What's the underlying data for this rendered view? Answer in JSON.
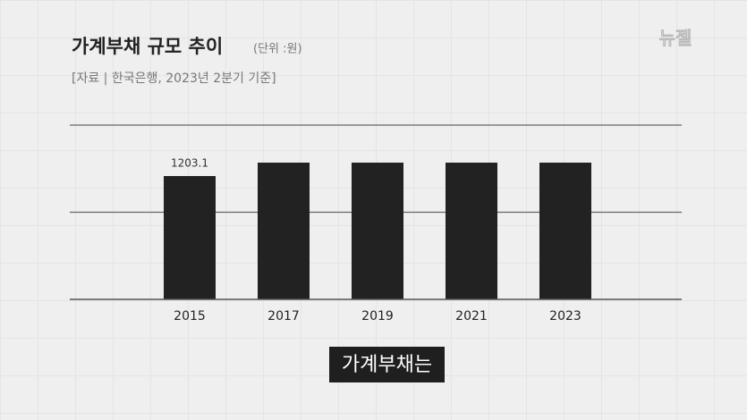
{
  "chart_data": {
    "type": "bar",
    "title": "가계부채 규모 추이",
    "subtitle": "(단위 :원)",
    "source": "[자료 | 한국은행, 2023년 2분기 기준]",
    "categories": [
      "2015",
      "2017",
      "2019",
      "2021",
      "2023"
    ],
    "values": [
      1203.1,
      1334,
      1334,
      1334,
      1334
    ],
    "value_labels": [
      "1203.1",
      null,
      null,
      null,
      null
    ],
    "color": "#222222",
    "ylim": [
      0,
      1700
    ]
  },
  "caption": "가계부채는",
  "logo": "뉴젤"
}
